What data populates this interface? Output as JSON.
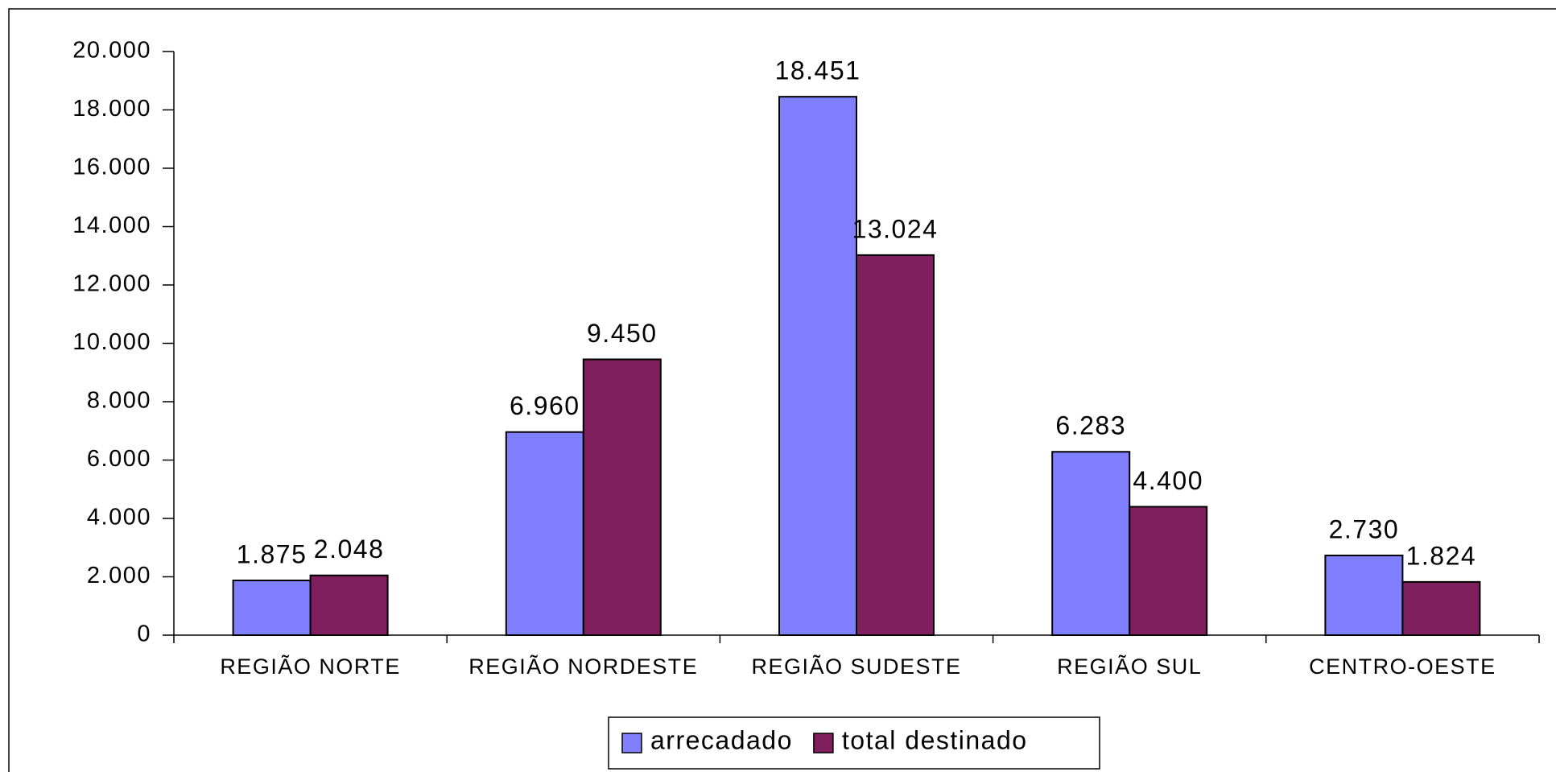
{
  "chart_data": {
    "type": "bar",
    "categories": [
      "REGIÃO NORTE",
      "REGIÃO NORDESTE",
      "REGIÃO SUDESTE",
      "REGIÃO SUL",
      "CENTRO-OESTE"
    ],
    "series": [
      {
        "name": "arrecadado",
        "color": "#8080ff",
        "values": [
          1875,
          6960,
          18451,
          6283,
          2730
        ],
        "value_labels": [
          "1.875",
          "6.960",
          "18.451",
          "6.283",
          "2.730"
        ]
      },
      {
        "name": "total destinado",
        "color": "#801f5e",
        "values": [
          2048,
          9450,
          13024,
          4400,
          1824
        ],
        "value_labels": [
          "2.048",
          "9.450",
          "13.024",
          "4.400",
          "1.824"
        ]
      }
    ],
    "ylim": [
      0,
      20000
    ],
    "yticks": [
      0,
      {
        "value": 2000,
        "label": "2.000"
      },
      {
        "value": 4000,
        "label": "4.000"
      },
      {
        "value": 6000,
        "label": "6.000"
      },
      {
        "value": 8000,
        "label": "8.000"
      },
      {
        "value": 10000,
        "label": "10.000"
      },
      {
        "value": 12000,
        "label": "12.000"
      },
      {
        "value": 14000,
        "label": "14.000"
      },
      {
        "value": 16000,
        "label": "16.000"
      },
      {
        "value": 18000,
        "label": "18.000"
      },
      {
        "value": 20000,
        "label": "20.000"
      }
    ],
    "legend": "bottom"
  }
}
